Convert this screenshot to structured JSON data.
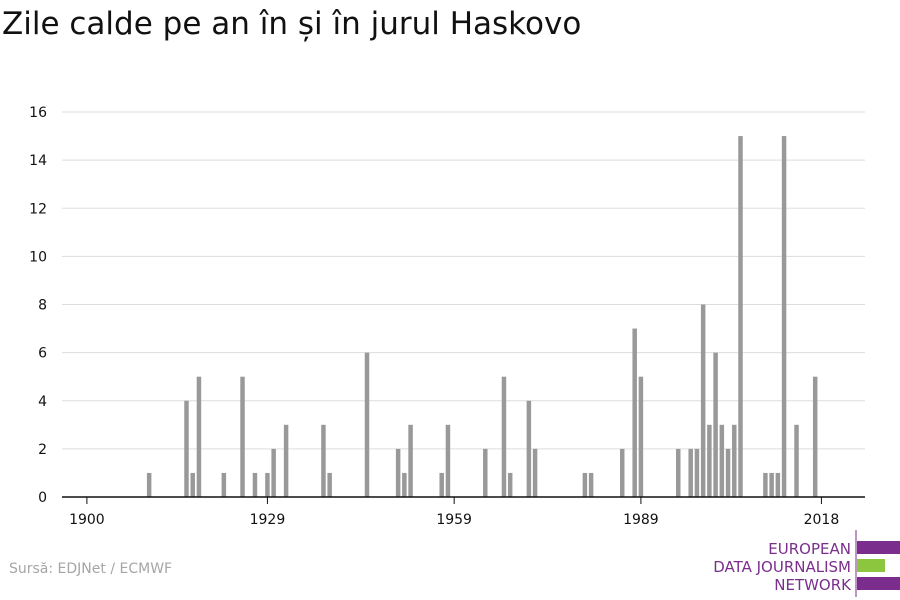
{
  "title": "Zile calde pe an în și în jurul Haskovo",
  "source": "Sursă: EDJNet / ECMWF",
  "logo": {
    "lines": [
      "EUROPEAN",
      "DATA JOURNALISM",
      "NETWORK"
    ],
    "colors": {
      "purple": "#7b2d8e",
      "green": "#8cc63f"
    }
  },
  "chart_data": {
    "type": "bar",
    "title": "Zile calde pe an în și în jurul Haskovo",
    "xlabel": "",
    "ylabel": "",
    "x_ticks": [
      1900,
      1929,
      1959,
      1989,
      2018
    ],
    "y_ticks": [
      0,
      2,
      4,
      6,
      8,
      10,
      12,
      14,
      16
    ],
    "ylim": [
      0,
      16
    ],
    "xlim": [
      1896,
      2025
    ],
    "grid": true,
    "bar_color": "#999999",
    "x": [
      1910,
      1916,
      1917,
      1918,
      1922,
      1925,
      1927,
      1929,
      1930,
      1932,
      1938,
      1939,
      1945,
      1950,
      1951,
      1952,
      1957,
      1958,
      1964,
      1967,
      1968,
      1971,
      1972,
      1980,
      1981,
      1986,
      1988,
      1989,
      1995,
      1997,
      1998,
      1999,
      2000,
      2001,
      2002,
      2003,
      2004,
      2005,
      2009,
      2010,
      2011,
      2012,
      2014,
      2017,
      2019
    ],
    "values": [
      1,
      4,
      1,
      5,
      1,
      5,
      1,
      1,
      2,
      3,
      3,
      1,
      6,
      2,
      1,
      3,
      1,
      3,
      2,
      5,
      1,
      4,
      2,
      1,
      1,
      2,
      7,
      5,
      2,
      2,
      2,
      8,
      3,
      6,
      3,
      2,
      3,
      15,
      1,
      1,
      1,
      15,
      3,
      5,
      0
    ]
  }
}
